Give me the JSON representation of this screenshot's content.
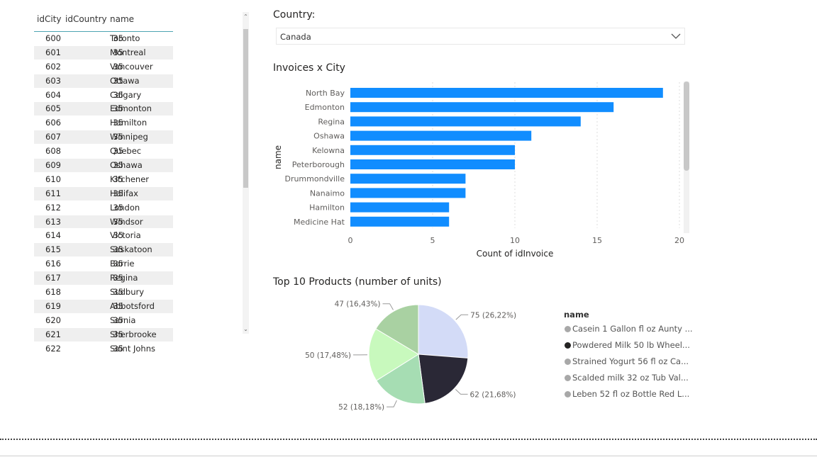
{
  "table": {
    "columns": [
      "idCity",
      "idCountry",
      "name"
    ],
    "rows": [
      [
        "600",
        "35",
        "Toronto"
      ],
      [
        "601",
        "35",
        "Montreal"
      ],
      [
        "602",
        "35",
        "Vancouver"
      ],
      [
        "603",
        "35",
        "Ottawa"
      ],
      [
        "604",
        "35",
        "Calgary"
      ],
      [
        "605",
        "35",
        "Edmonton"
      ],
      [
        "606",
        "35",
        "Hamilton"
      ],
      [
        "607",
        "35",
        "Winnipeg"
      ],
      [
        "608",
        "35",
        "Quebec"
      ],
      [
        "609",
        "35",
        "Oshawa"
      ],
      [
        "610",
        "35",
        "Kitchener"
      ],
      [
        "611",
        "35",
        "Halifax"
      ],
      [
        "612",
        "35",
        "London"
      ],
      [
        "613",
        "35",
        "Windsor"
      ],
      [
        "614",
        "35",
        "Victoria"
      ],
      [
        "615",
        "35",
        "Saskatoon"
      ],
      [
        "616",
        "35",
        "Barrie"
      ],
      [
        "617",
        "35",
        "Regina"
      ],
      [
        "618",
        "35",
        "Sudbury"
      ],
      [
        "619",
        "35",
        "Abbotsford"
      ],
      [
        "620",
        "35",
        "Sarnia"
      ],
      [
        "621",
        "35",
        "Sherbrooke"
      ],
      [
        "622",
        "35",
        "Saint Johns"
      ]
    ]
  },
  "slicer": {
    "label": "Country:",
    "value": "Canada"
  },
  "bar_title": "Invoices x City",
  "pie_title": "Top 10 Products (number of units)",
  "chart_data": [
    {
      "type": "bar",
      "orientation": "horizontal",
      "title": "Invoices x City",
      "ylabel": "name",
      "xlabel": "Count of idInvoice",
      "categories": [
        "North Bay",
        "Edmonton",
        "Regina",
        "Oshawa",
        "Kelowna",
        "Peterborough",
        "Drummondville",
        "Nanaimo",
        "Hamilton",
        "Medicine Hat"
      ],
      "values": [
        19,
        16,
        14,
        11,
        10,
        10,
        7,
        7,
        6,
        6
      ],
      "xlim": [
        0,
        20
      ],
      "xticks": [
        "0",
        "5",
        "10",
        "15",
        "20"
      ],
      "grid": true,
      "color": "#118dff"
    },
    {
      "type": "pie",
      "title": "Top 10 Products (number of units)",
      "legend_title": "name",
      "legend_position": "right",
      "slices": [
        {
          "label": "75 (26,22%)",
          "value": 75,
          "color": "#d3dbf7"
        },
        {
          "label": "62 (21,68%)",
          "value": 62,
          "color": "#2a2836"
        },
        {
          "label": "52 (18,18%)",
          "value": 52,
          "color": "#a6ddb3"
        },
        {
          "label": "50 (17,48%)",
          "value": 50,
          "color": "#c8f9bd"
        },
        {
          "label": "47 (16,43%)",
          "value": 47,
          "color": "#a9d1a2"
        }
      ],
      "legend": [
        {
          "name": "Casein 1 Gallon fl oz Aunty ...",
          "color": "#a8a8a8"
        },
        {
          "name": "Powdered Milk 50 lb Wheel...",
          "color": "#252423"
        },
        {
          "name": "Strained Yogurt 56 fl oz Ca...",
          "color": "#a8a8a8"
        },
        {
          "name": "Scalded milk 32 oz Tub Val...",
          "color": "#a8a8a8"
        },
        {
          "name": "Leben 52 fl oz Bottle Red L...",
          "color": "#a8a8a8"
        }
      ]
    }
  ],
  "icons": {
    "chevron": "chevron-down-icon",
    "scroll_up": "scroll-up-arrow-icon",
    "scroll_down": "scroll-down-arrow-icon"
  }
}
